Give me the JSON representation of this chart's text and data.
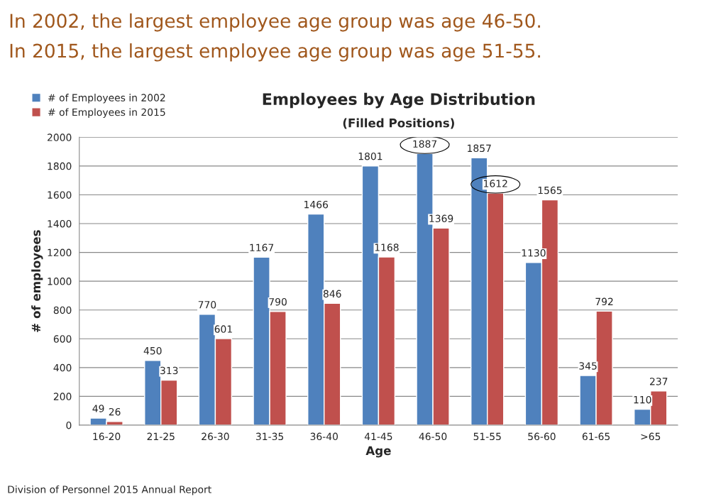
{
  "chart_data": {
    "type": "bar",
    "title": "Employees by Age Distribution",
    "subtitle": "(Filled Positions)",
    "xlabel": "Age",
    "ylabel": "# of employees",
    "annotations": [
      "In 2002, the largest employee age group was age 46-50.",
      "In 2015, the largest employee age group was age 51-55.",
      "Division of Personnel 2015 Annual Report"
    ],
    "categories": [
      "16-20",
      "21-25",
      "26-30",
      "31-35",
      "36-40",
      "41-45",
      "46-50",
      "51-55",
      "56-60",
      "61-65",
      ">65"
    ],
    "series": [
      {
        "name": "# of Employees in 2002",
        "color": "#4f81bd",
        "values": [
          49,
          450,
          770,
          1167,
          1466,
          1801,
          1887,
          1857,
          1130,
          345,
          110
        ]
      },
      {
        "name": "# of Employees in 2015",
        "color": "#c0504d",
        "values": [
          26,
          313,
          601,
          790,
          846,
          1168,
          1369,
          1612,
          1565,
          792,
          237
        ]
      }
    ],
    "ylim": [
      0,
      2000
    ],
    "yticks": [
      0,
      200,
      400,
      600,
      800,
      1000,
      1200,
      1400,
      1600,
      1800,
      2000
    ],
    "grid": "y",
    "legend": "top left",
    "data_labels": true
  }
}
